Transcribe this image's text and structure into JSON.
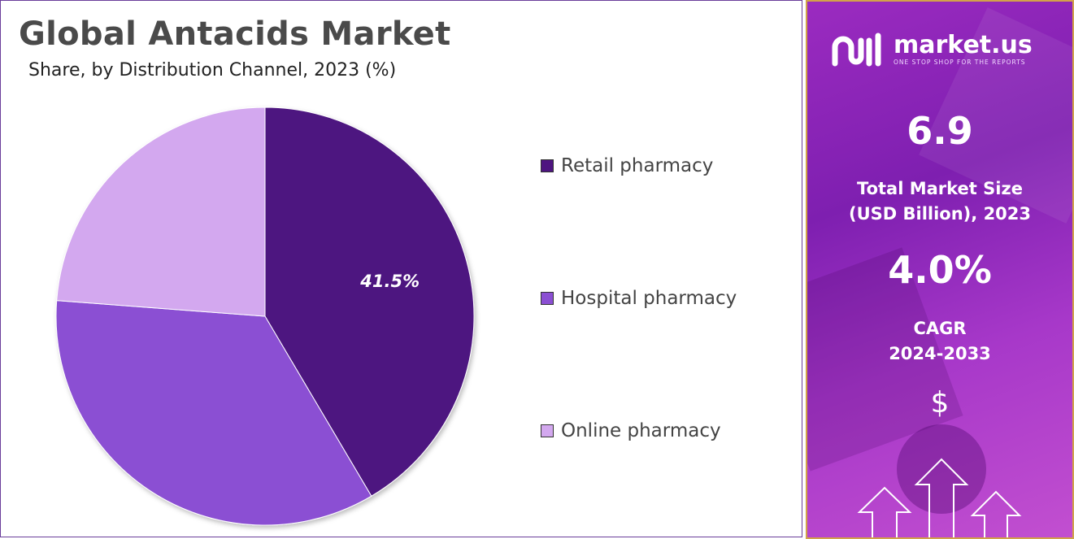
{
  "title": "Global Antacids Market",
  "subtitle": "Share, by Distribution Channel, 2023 (%)",
  "chart_data": {
    "type": "pie",
    "title": "Global Antacids Market",
    "subtitle": "Share, by Distribution Channel, 2023 (%)",
    "categories": [
      "Retail pharmacy",
      "Hospital pharmacy",
      "Online pharmacy"
    ],
    "values": [
      41.5,
      34.7,
      23.8
    ],
    "data_labels": [
      "41.5%",
      "",
      ""
    ],
    "colors": [
      "#4e1580",
      "#8b4fd3",
      "#d3a8ef"
    ],
    "start_angle_deg": 0,
    "direction": "clockwise",
    "legend_position": "right"
  },
  "sidebar": {
    "brand_name": "market.us",
    "brand_tagline": "ONE STOP SHOP FOR THE REPORTS",
    "market_size_value": "6.9",
    "market_size_label_line1": "Total Market Size",
    "market_size_label_line2": "(USD Billion), 2023",
    "cagr_value": "4.0%",
    "cagr_label_line1": "CAGR",
    "cagr_label_line2": "2024-2033",
    "icon_dollar": "$",
    "icons": [
      "logo-icon",
      "dollar-icon",
      "up-arrow-icon"
    ],
    "accent_color": "#9b2bc0",
    "border_color": "#d2a24a"
  }
}
